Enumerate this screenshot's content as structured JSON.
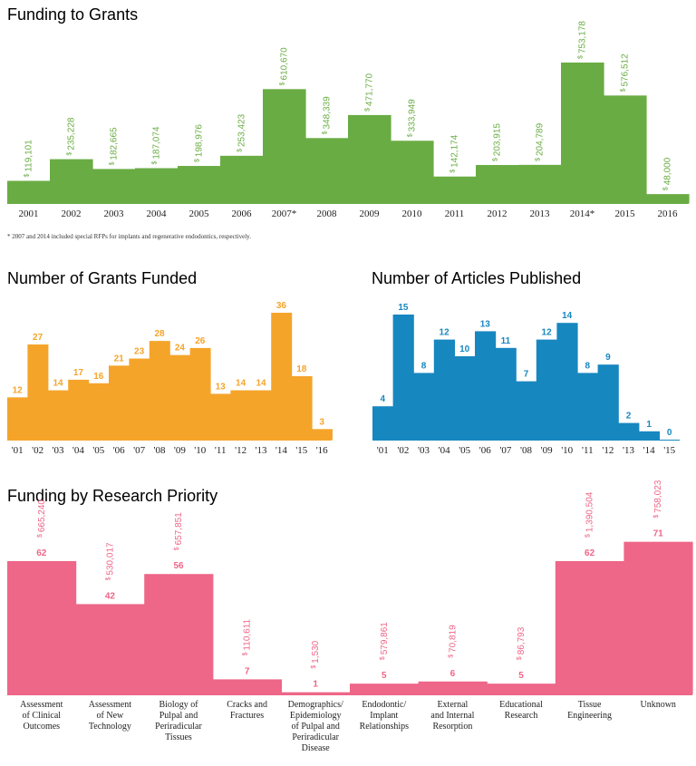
{
  "colors": {
    "funding": "#6aac44",
    "grants": "#f5a42a",
    "articles": "#1787c0",
    "priority": "#ee6688"
  },
  "footnote": "* 2007 and 2014 included special RFPs for implants and regenerative endodontics, respectively.",
  "chart_data": [
    {
      "id": "funding",
      "type": "bar",
      "title": "Funding to Grants",
      "currency_symbol": "$",
      "categories": [
        "2001",
        "2002",
        "2003",
        "2004",
        "2005",
        "2006",
        "2007*",
        "2008",
        "2009",
        "2010",
        "2011",
        "2012",
        "2013",
        "2014*",
        "2015",
        "2016"
      ],
      "values": [
        119101,
        235228,
        182665,
        187074,
        198976,
        253423,
        610670,
        348339,
        471770,
        333949,
        142174,
        203915,
        204789,
        753178,
        576512,
        48000
      ],
      "value_labels": [
        "119,101",
        "235,228",
        "182,665",
        "187,074",
        "198,976",
        "253,423",
        "610,670",
        "348,339",
        "471,770",
        "333,949",
        "142,174",
        "203,915",
        "204,789",
        "753,178",
        "576,512",
        "48,000"
      ],
      "ylim": [
        0,
        800000
      ]
    },
    {
      "id": "grants",
      "type": "bar",
      "title": "Number of Grants Funded",
      "categories": [
        "'01",
        "'02",
        "'03",
        "'04",
        "'05",
        "'06",
        "'07",
        "'08",
        "'09",
        "'10",
        "'11",
        "'12",
        "'13",
        "'14",
        "'15",
        "'16"
      ],
      "values": [
        12,
        27,
        14,
        17,
        16,
        21,
        23,
        28,
        24,
        26,
        13,
        14,
        14,
        36,
        18,
        3
      ],
      "ylim": [
        0,
        40
      ]
    },
    {
      "id": "articles",
      "type": "bar",
      "title": "Number of Articles Published",
      "categories": [
        "'01",
        "'02",
        "'03",
        "'04",
        "'05",
        "'06",
        "'07",
        "'08",
        "'09",
        "'10",
        "'11",
        "'12",
        "'13",
        "'14",
        "'15"
      ],
      "values": [
        4,
        15,
        8,
        12,
        10,
        13,
        11,
        7,
        12,
        14,
        8,
        9,
        2,
        1,
        0
      ],
      "ylim": [
        0,
        16
      ]
    },
    {
      "id": "priority",
      "type": "bar",
      "title": "Funding by Research Priority",
      "currency_symbol": "$",
      "categories": [
        [
          "Assessment",
          "of Clinical",
          "Outcomes"
        ],
        [
          "Assessment",
          "of New",
          "Technology"
        ],
        [
          "Biology of",
          "Pulpal and",
          "Periradicular",
          "Tissues"
        ],
        [
          "Cracks and",
          "Fractures"
        ],
        [
          "Demographics/",
          "Epidemiology",
          "of Pulpal and",
          "Periradicular",
          "Disease"
        ],
        [
          "Endodontic/",
          "Implant",
          "Relationships"
        ],
        [
          "External",
          "and Internal",
          "Resorption"
        ],
        [
          "Educational",
          "Research"
        ],
        [
          "Tissue",
          "Engineering"
        ],
        [
          "Unknown"
        ]
      ],
      "counts": [
        62,
        42,
        56,
        7,
        1,
        5,
        6,
        5,
        62,
        71
      ],
      "funding_labels": [
        "665,240",
        "530,017",
        "657,851",
        "110,611",
        "1,530",
        "579,861",
        "70,819",
        "86,793",
        "1,390,504",
        "758,023"
      ],
      "funding": [
        665240,
        530017,
        657851,
        110611,
        1530,
        579861,
        70819,
        86793,
        1390504,
        758023
      ]
    }
  ]
}
